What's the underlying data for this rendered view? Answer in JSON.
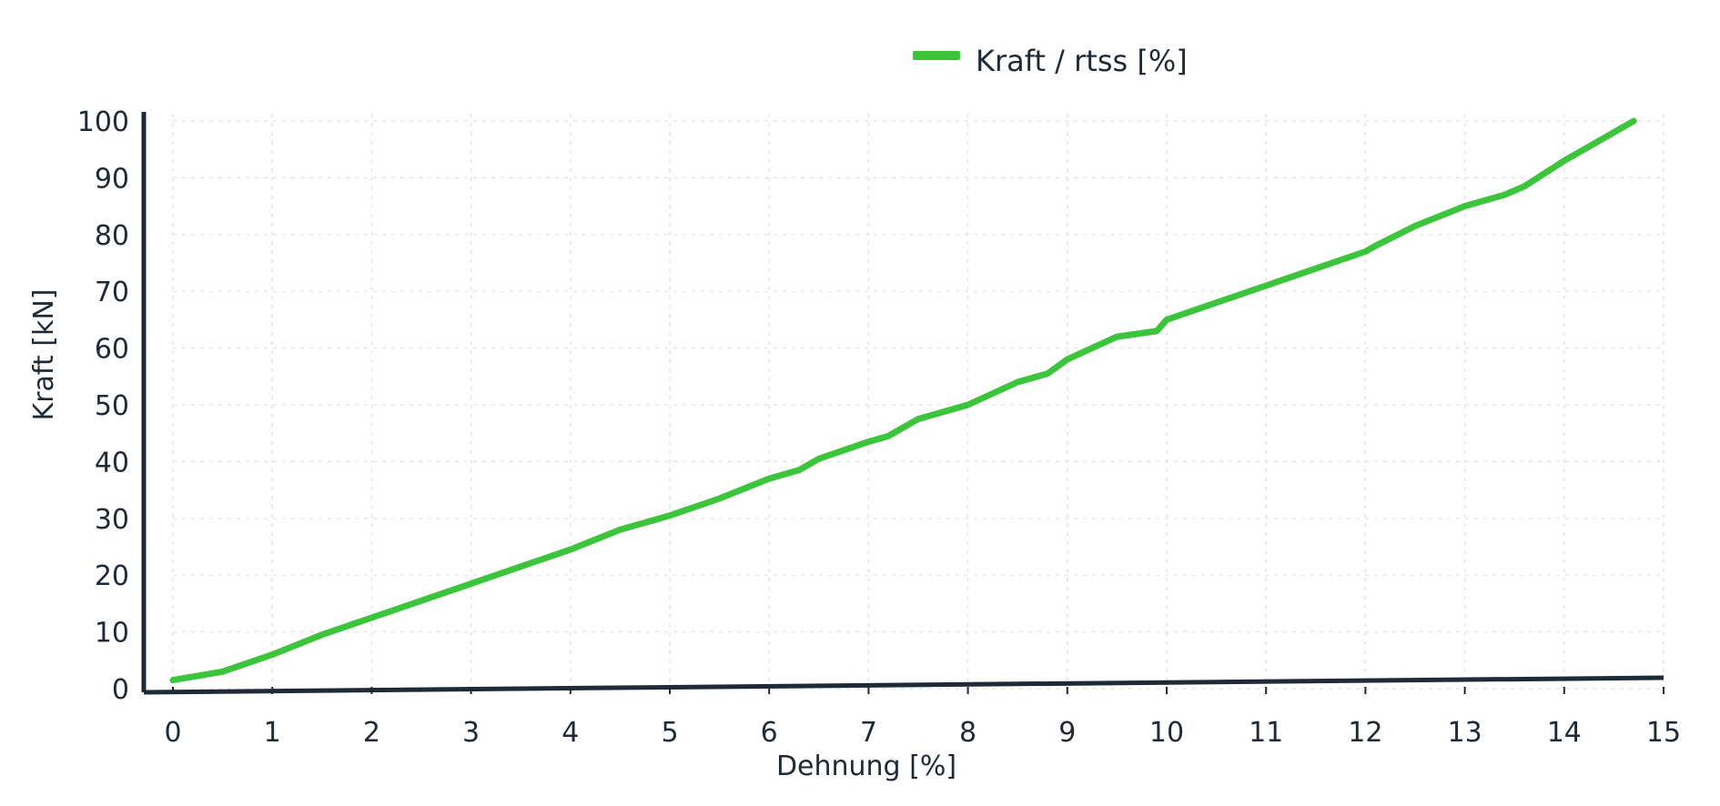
{
  "chart_data": {
    "type": "line",
    "legend": {
      "label": "Kraft / rtss [%]",
      "placement": "top-center",
      "color": "#3cc43c"
    },
    "xlabel": "Dehnung [%]",
    "ylabel": "Kraft [kN]",
    "xlim": [
      0,
      15
    ],
    "ylim": [
      0,
      100
    ],
    "xticks": [
      "0",
      "1",
      "2",
      "3",
      "4",
      "5",
      "6",
      "7",
      "8",
      "9",
      "10",
      "11",
      "12",
      "13",
      "14",
      "15"
    ],
    "yticks": [
      "0",
      "10",
      "20",
      "30",
      "40",
      "50",
      "60",
      "70",
      "80",
      "90",
      "100"
    ],
    "grid": true,
    "colors": {
      "line": "#3cc43c",
      "axis": "#1e2a36",
      "grid": "#e3e3e3"
    },
    "series": [
      {
        "name": "Kraft / rtss [%]",
        "x": [
          0,
          0.5,
          1,
          1.5,
          2,
          2.5,
          3,
          3.5,
          4,
          4.5,
          5,
          5.5,
          6,
          6.3,
          6.5,
          7,
          7.2,
          7.5,
          8,
          8.5,
          8.8,
          9,
          9.5,
          9.9,
          10,
          10.5,
          11,
          11.5,
          12,
          12.1,
          12.5,
          13,
          13.4,
          13.6,
          14,
          14.5,
          14.7
        ],
        "y": [
          1.5,
          3,
          6,
          9.5,
          12.5,
          15.5,
          18.5,
          21.5,
          24.5,
          28,
          30.5,
          33.5,
          37,
          38.5,
          40.5,
          43.5,
          44.5,
          47.5,
          50,
          54,
          55.5,
          58,
          62,
          63,
          65,
          68,
          71,
          74,
          77,
          78,
          81.5,
          85,
          87,
          88.5,
          93,
          98,
          100
        ]
      }
    ]
  }
}
